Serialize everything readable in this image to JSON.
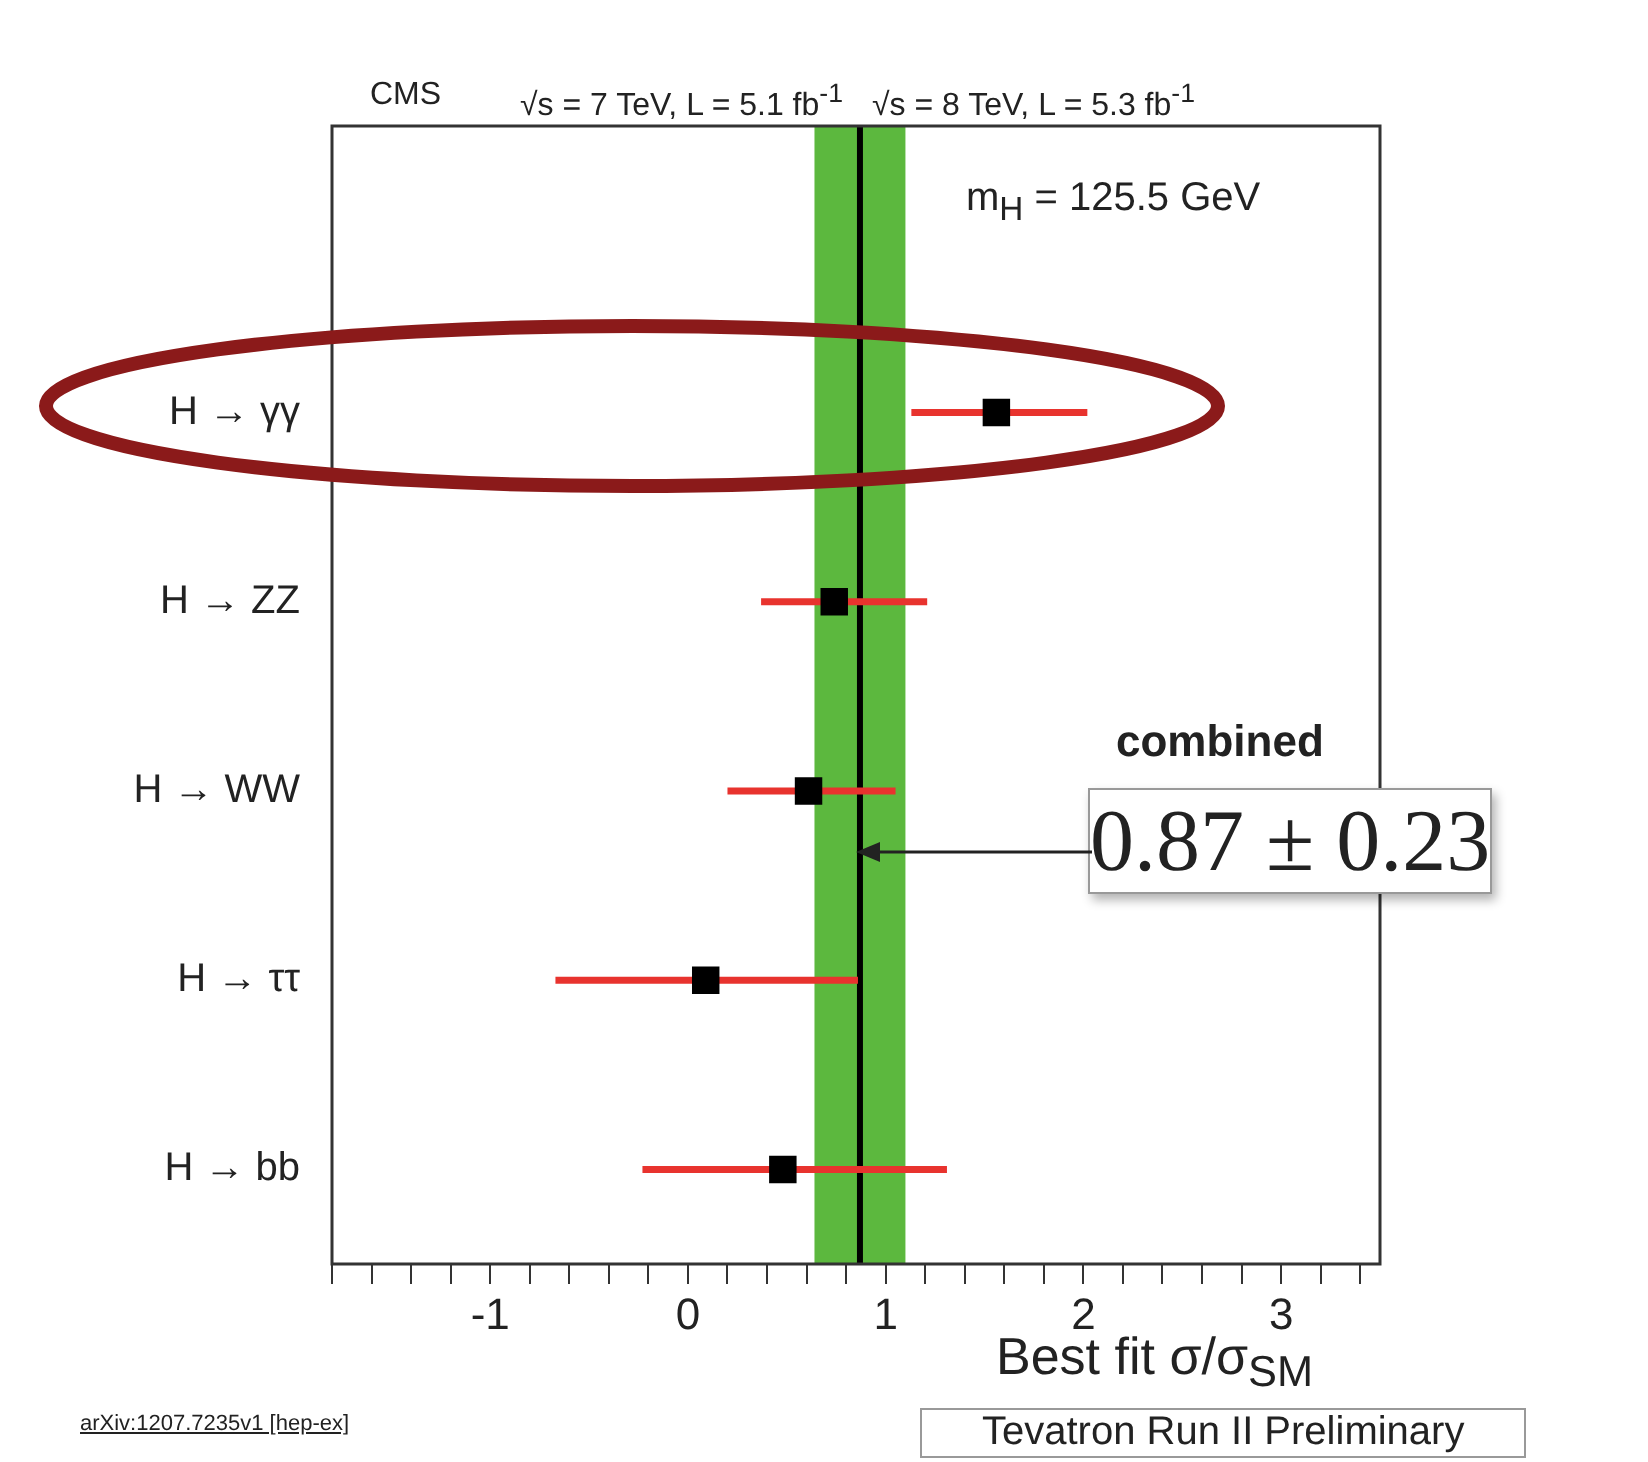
{
  "chart_data": {
    "type": "scatter",
    "orientation": "horizontal",
    "xlabel": "Best fit σ/σ$_{SM}$",
    "categories": [
      "H → γγ",
      "H → ZZ",
      "H → WW",
      "H → ττ",
      "H → bb"
    ],
    "values": [
      1.56,
      0.74,
      0.61,
      0.09,
      0.48
    ],
    "errors": [
      [
        1.13,
        2.02
      ],
      [
        0.37,
        1.21
      ],
      [
        0.2,
        1.05
      ],
      [
        -0.67,
        0.86
      ],
      [
        -0.23,
        1.31
      ]
    ],
    "color": "#000000",
    "marker": "square",
    "xlim": [
      -1.8,
      3.5
    ],
    "xticks": [
      {
        "value": -1.8,
        "label": null
      },
      {
        "value": -1.6,
        "label": null
      },
      {
        "value": -1.4,
        "label": null
      },
      {
        "value": -1.2,
        "label": null
      },
      -1,
      {
        "value": -0.8,
        "label": null
      },
      {
        "value": -0.6,
        "label": null
      },
      {
        "value": -0.4,
        "label": null
      },
      {
        "value": -0.2,
        "label": null
      },
      0,
      {
        "value": 0.2,
        "label": null
      },
      {
        "value": 0.4,
        "label": null
      },
      {
        "value": 0.6,
        "label": null
      },
      {
        "value": 0.8,
        "label": null
      },
      1,
      {
        "value": 1.2,
        "label": null
      },
      {
        "value": 1.4,
        "label": null
      },
      {
        "value": 1.6,
        "label": null
      },
      {
        "value": 1.8,
        "label": null
      },
      2,
      {
        "value": 2.2,
        "label": null
      },
      {
        "value": 2.4,
        "label": null
      },
      {
        "value": 2.6,
        "label": null
      },
      {
        "value": 2.8,
        "label": null
      },
      3,
      {
        "value": 3.2,
        "label": null
      },
      {
        "value": 3.4,
        "label": null
      }
    ],
    "ref_lines": [
      {
        "axis": "x",
        "value": 0.87,
        "color": "#000000"
      }
    ],
    "bands": [
      {
        "axis": "x",
        "from": 0.64,
        "to": 1.1,
        "color": "#5cb83e"
      }
    ],
    "annotations": [
      "CMS",
      "√s = 7 TeV, L = 5.1 fb$^{-1}$",
      "√s = 8 TeV, L = 5.3 fb$^{-1}$",
      "m$_{H}$ = 125.5 GeV",
      "combined",
      "0.87 ± 0.23",
      "arXiv:1207.7235v1 [hep-ex]",
      "Tevatron Run II Preliminary"
    ],
    "grid": false,
    "legend": false
  }
}
